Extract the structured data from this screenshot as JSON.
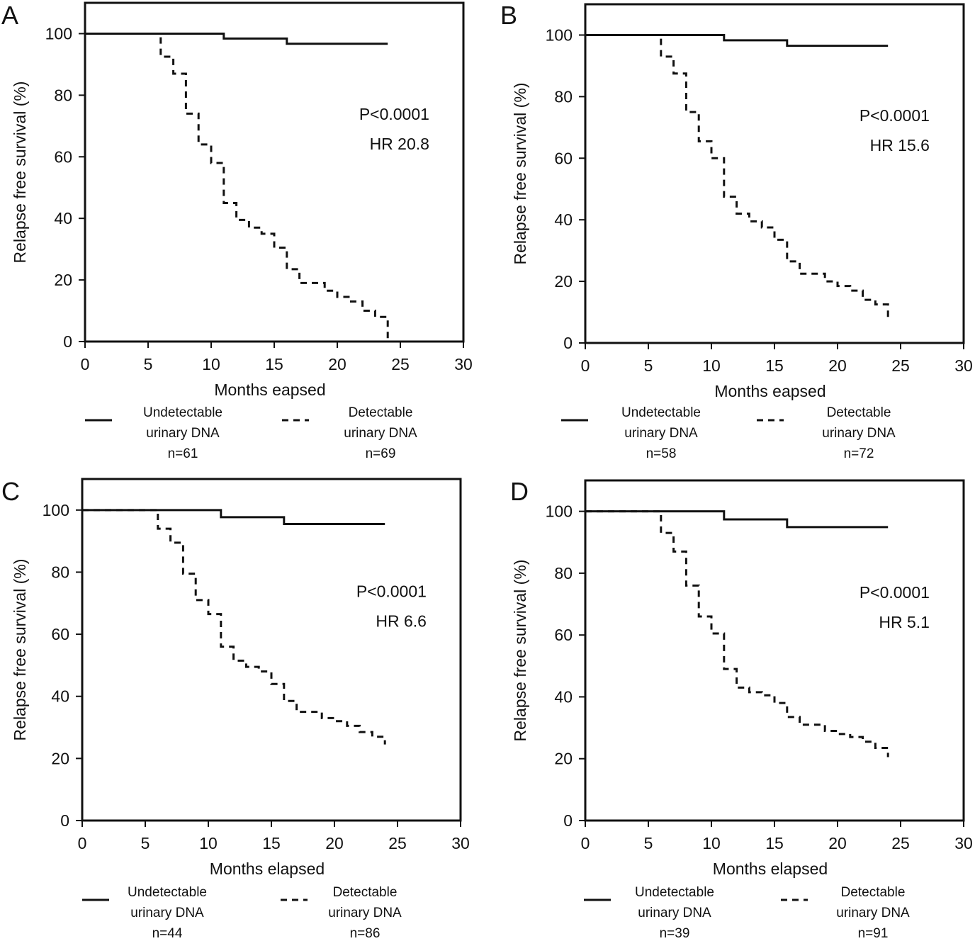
{
  "chart_data": [
    {
      "type": "line",
      "panel": "A",
      "xlabel": "Months eapsed",
      "ylabel": "Relapse free survival (%)",
      "xlim": [
        0,
        30
      ],
      "ylim": [
        0,
        110
      ],
      "xticks": [
        "0",
        "5",
        "10",
        "15",
        "20",
        "25",
        "30"
      ],
      "yticks": [
        "0",
        "20",
        "40",
        "60",
        "80",
        "100"
      ],
      "annotations": [
        "P<0.0001",
        "HR 20.8"
      ],
      "series": [
        {
          "style": "solid",
          "legend": [
            "Undetectable",
            "urinary DNA",
            "n=61"
          ],
          "steps": [
            [
              0,
              100
            ],
            [
              11,
              98.4
            ],
            [
              16,
              96.7
            ],
            [
              24,
              96.7
            ]
          ]
        },
        {
          "style": "dashed",
          "legend": [
            "Detectable",
            "urinary DNA",
            "n=69"
          ],
          "steps": [
            [
              0,
              100
            ],
            [
              6,
              92.5
            ],
            [
              7,
              87
            ],
            [
              8,
              74
            ],
            [
              9,
              64
            ],
            [
              10,
              58
            ],
            [
              11,
              45
            ],
            [
              12,
              39.5
            ],
            [
              13,
              37
            ],
            [
              14,
              35
            ],
            [
              15,
              30.5
            ],
            [
              16,
              23.5
            ],
            [
              17,
              19
            ],
            [
              19,
              16.5
            ],
            [
              20,
              14.5
            ],
            [
              21,
              13
            ],
            [
              22,
              10
            ],
            [
              23,
              8
            ],
            [
              24,
              0
            ]
          ]
        }
      ]
    },
    {
      "type": "line",
      "panel": "B",
      "xlabel": "Months eapsed",
      "ylabel": "Relapse free survival (%)",
      "xlim": [
        0,
        30
      ],
      "ylim": [
        0,
        110
      ],
      "xticks": [
        "0",
        "5",
        "10",
        "15",
        "20",
        "25",
        "30"
      ],
      "yticks": [
        "0",
        "20",
        "40",
        "60",
        "80",
        "100"
      ],
      "annotations": [
        "P<0.0001",
        "HR 15.6"
      ],
      "series": [
        {
          "style": "solid",
          "legend": [
            "Undetectable",
            "urinary DNA",
            "n=58"
          ],
          "steps": [
            [
              0,
              100
            ],
            [
              11,
              98.3
            ],
            [
              16,
              96.5
            ],
            [
              24,
              96.5
            ]
          ]
        },
        {
          "style": "dashed",
          "legend": [
            "Detectable",
            "urinary DNA",
            "n=72"
          ],
          "steps": [
            [
              0,
              100
            ],
            [
              6,
              93
            ],
            [
              7,
              87.5
            ],
            [
              8,
              75
            ],
            [
              9,
              65.5
            ],
            [
              10,
              60
            ],
            [
              11,
              47.5
            ],
            [
              12,
              42
            ],
            [
              13,
              39.5
            ],
            [
              14,
              37.5
            ],
            [
              15,
              33.5
            ],
            [
              16,
              26.5
            ],
            [
              17,
              22.5
            ],
            [
              19,
              20
            ],
            [
              20,
              18.5
            ],
            [
              21,
              17
            ],
            [
              22,
              14
            ],
            [
              23,
              12.5
            ],
            [
              24,
              8
            ]
          ]
        }
      ]
    },
    {
      "type": "line",
      "panel": "C",
      "xlabel": "Months elapsed",
      "ylabel": "Relapse free survival (%)",
      "xlim": [
        0,
        30
      ],
      "ylim": [
        0,
        110
      ],
      "xticks": [
        "0",
        "5",
        "10",
        "15",
        "20",
        "25",
        "30"
      ],
      "yticks": [
        "0",
        "20",
        "40",
        "60",
        "80",
        "100"
      ],
      "annotations": [
        "P<0.0001",
        "HR 6.6"
      ],
      "series": [
        {
          "style": "solid",
          "legend": [
            "Undetectable",
            "urinary DNA",
            "n=44"
          ],
          "steps": [
            [
              0,
              100
            ],
            [
              11,
              97.7
            ],
            [
              16,
              95.5
            ],
            [
              24,
              95.5
            ]
          ]
        },
        {
          "style": "dashed",
          "legend": [
            "Detectable",
            "urinary DNA",
            "n=86"
          ],
          "steps": [
            [
              0,
              100
            ],
            [
              6,
              94
            ],
            [
              7,
              89.5
            ],
            [
              8,
              79.5
            ],
            [
              9,
              71
            ],
            [
              10,
              66.5
            ],
            [
              11,
              56
            ],
            [
              12,
              51.5
            ],
            [
              13,
              49.5
            ],
            [
              14,
              48
            ],
            [
              15,
              44
            ],
            [
              16,
              38.5
            ],
            [
              17,
              35
            ],
            [
              19,
              33
            ],
            [
              20,
              32
            ],
            [
              21,
              30.5
            ],
            [
              22,
              28.5
            ],
            [
              23,
              27
            ],
            [
              24,
              24.5
            ]
          ]
        }
      ]
    },
    {
      "type": "line",
      "panel": "D",
      "xlabel": "Months elapsed",
      "ylabel": "Relapse free survival (%)",
      "xlim": [
        0,
        30
      ],
      "ylim": [
        0,
        110
      ],
      "xticks": [
        "0",
        "5",
        "10",
        "15",
        "20",
        "25",
        "30"
      ],
      "yticks": [
        "0",
        "20",
        "40",
        "60",
        "80",
        "100"
      ],
      "annotations": [
        "P<0.0001",
        "HR 5.1"
      ],
      "series": [
        {
          "style": "solid",
          "legend": [
            "Undetectable",
            "urinary DNA",
            "n=39"
          ],
          "steps": [
            [
              0,
              100
            ],
            [
              11,
              97.4
            ],
            [
              16,
              94.9
            ],
            [
              24,
              94.9
            ]
          ]
        },
        {
          "style": "dashed",
          "legend": [
            "Detectable",
            "urinary DNA",
            "n=91"
          ],
          "steps": [
            [
              0,
              100
            ],
            [
              6,
              93
            ],
            [
              7,
              87
            ],
            [
              8,
              76
            ],
            [
              9,
              66
            ],
            [
              10,
              60.5
            ],
            [
              11,
              49
            ],
            [
              12,
              43
            ],
            [
              13,
              41.5
            ],
            [
              14,
              40.5
            ],
            [
              15,
              38
            ],
            [
              16,
              33.5
            ],
            [
              17,
              31
            ],
            [
              19,
              29
            ],
            [
              20,
              28
            ],
            [
              21,
              27
            ],
            [
              22,
              25.5
            ],
            [
              23,
              23.5
            ],
            [
              24,
              20.5
            ]
          ]
        }
      ]
    }
  ]
}
